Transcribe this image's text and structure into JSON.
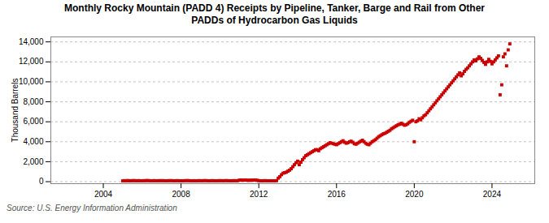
{
  "chart_data": {
    "type": "scatter",
    "title": "Monthly Rocky Mountain (PADD 4) Receipts by Pipeline, Tanker, Barge and Rail from Other\nPADDs of Hydrocarbon Gas Liquids",
    "ylabel": "Thousand Barrels",
    "annotations": [
      "Source: U.S. Energy Information Administration"
    ],
    "color": "#cc0000",
    "marker": "square",
    "grid": true,
    "xlim": [
      2001.3,
      2026.2
    ],
    "xticks": [
      2004,
      2008,
      2012,
      2016,
      2020,
      2024
    ],
    "ylim": [
      -200,
      14500
    ],
    "yticks": [
      0,
      {
        "value": 2000,
        "label": "2,000"
      },
      {
        "value": 4000,
        "label": "4,000"
      },
      {
        "value": 6000,
        "label": "6,000"
      },
      {
        "value": 8000,
        "label": "8,000"
      },
      {
        "value": 10000,
        "label": "10,000"
      },
      {
        "value": 12000,
        "label": "12,000"
      },
      {
        "value": 14000,
        "label": "14,000"
      }
    ],
    "x": [
      2005.0,
      2005.083,
      2005.167,
      2005.25,
      2005.333,
      2005.417,
      2005.5,
      2005.583,
      2005.667,
      2005.75,
      2005.833,
      2005.917,
      2006.0,
      2006.083,
      2006.167,
      2006.25,
      2006.333,
      2006.417,
      2006.5,
      2006.583,
      2006.667,
      2006.75,
      2006.833,
      2006.917,
      2007.0,
      2007.083,
      2007.167,
      2007.25,
      2007.333,
      2007.417,
      2007.5,
      2007.583,
      2007.667,
      2007.75,
      2007.833,
      2007.917,
      2008.0,
      2008.083,
      2008.167,
      2008.25,
      2008.333,
      2008.417,
      2008.5,
      2008.583,
      2008.667,
      2008.75,
      2008.833,
      2008.917,
      2009.0,
      2009.083,
      2009.167,
      2009.25,
      2009.333,
      2009.417,
      2009.5,
      2009.583,
      2009.667,
      2009.75,
      2009.833,
      2009.917,
      2010.0,
      2010.083,
      2010.167,
      2010.25,
      2010.333,
      2010.417,
      2010.5,
      2010.583,
      2010.667,
      2010.75,
      2010.833,
      2010.917,
      2011.0,
      2011.083,
      2011.167,
      2011.25,
      2011.333,
      2011.417,
      2011.5,
      2011.583,
      2011.667,
      2011.75,
      2011.833,
      2011.917,
      2012.0,
      2012.083,
      2012.167,
      2012.25,
      2012.333,
      2012.417,
      2012.5,
      2012.583,
      2012.667,
      2012.75,
      2012.833,
      2012.917,
      2013.0,
      2013.083,
      2013.167,
      2013.25,
      2013.333,
      2013.417,
      2013.5,
      2013.583,
      2013.667,
      2013.75,
      2013.833,
      2013.917,
      2014.0,
      2014.083,
      2014.167,
      2014.25,
      2014.333,
      2014.417,
      2014.5,
      2014.583,
      2014.667,
      2014.75,
      2014.833,
      2014.917,
      2015.0,
      2015.083,
      2015.167,
      2015.25,
      2015.333,
      2015.417,
      2015.5,
      2015.583,
      2015.667,
      2015.75,
      2015.833,
      2015.917,
      2016.0,
      2016.083,
      2016.167,
      2016.25,
      2016.333,
      2016.417,
      2016.5,
      2016.583,
      2016.667,
      2016.75,
      2016.833,
      2016.917,
      2017.0,
      2017.083,
      2017.167,
      2017.25,
      2017.333,
      2017.417,
      2017.5,
      2017.583,
      2017.667,
      2017.75,
      2017.833,
      2017.917,
      2018.0,
      2018.083,
      2018.167,
      2018.25,
      2018.333,
      2018.417,
      2018.5,
      2018.583,
      2018.667,
      2018.75,
      2018.833,
      2018.917,
      2019.0,
      2019.083,
      2019.167,
      2019.25,
      2019.333,
      2019.417,
      2019.5,
      2019.583,
      2019.667,
      2019.75,
      2019.833,
      2019.917,
      2020.0,
      2020.083,
      2020.167,
      2020.25,
      2020.333,
      2020.417,
      2020.5,
      2020.583,
      2020.667,
      2020.75,
      2020.833,
      2020.917,
      2021.0,
      2021.083,
      2021.167,
      2021.25,
      2021.333,
      2021.417,
      2021.5,
      2021.583,
      2021.667,
      2021.75,
      2021.833,
      2021.917,
      2022.0,
      2022.083,
      2022.167,
      2022.25,
      2022.333,
      2022.417,
      2022.5,
      2022.583,
      2022.667,
      2022.75,
      2022.833,
      2022.917,
      2023.0,
      2023.083,
      2023.167,
      2023.25,
      2023.333,
      2023.417,
      2023.5,
      2023.583,
      2023.667,
      2023.75,
      2023.833,
      2023.917,
      2024.0,
      2024.083,
      2024.167,
      2024.25,
      2024.333,
      2024.417,
      2024.5,
      2024.583,
      2024.667,
      2024.75,
      2024.833,
      2024.917
    ],
    "values": [
      80,
      100,
      90,
      110,
      95,
      85,
      100,
      110,
      90,
      95,
      100,
      85,
      90,
      95,
      100,
      110,
      105,
      90,
      85,
      100,
      95,
      90,
      95,
      100,
      95,
      100,
      90,
      85,
      95,
      100,
      105,
      90,
      80,
      95,
      100,
      90,
      90,
      85,
      95,
      100,
      110,
      95,
      90,
      85,
      95,
      80,
      90,
      100,
      95,
      90,
      100,
      105,
      95,
      85,
      90,
      100,
      95,
      90,
      85,
      95,
      100,
      95,
      90,
      100,
      105,
      95,
      90,
      85,
      95,
      100,
      90,
      100,
      150,
      160,
      140,
      150,
      160,
      140,
      130,
      150,
      140,
      160,
      150,
      140,
      100,
      90,
      80,
      95,
      100,
      85,
      90,
      80,
      85,
      90,
      80,
      100,
      350,
      500,
      700,
      850,
      900,
      950,
      1050,
      1150,
      1300,
      1500,
      1700,
      1900,
      2050,
      1700,
      1950,
      2200,
      2400,
      2600,
      2700,
      2800,
      2900,
      3000,
      3100,
      3200,
      3200,
      3100,
      3300,
      3400,
      3500,
      3600,
      3700,
      3800,
      3900,
      3850,
      3800,
      3750,
      3700,
      3800,
      3900,
      4000,
      4100,
      3950,
      3850,
      3900,
      4000,
      4050,
      3950,
      3800,
      3750,
      3850,
      3950,
      4050,
      4150,
      4000,
      3850,
      3750,
      3700,
      3850,
      4000,
      4100,
      4200,
      4350,
      4500,
      4600,
      4700,
      4800,
      4850,
      4950,
      5050,
      5150,
      5300,
      5400,
      5500,
      5600,
      5700,
      5750,
      5850,
      5750,
      5650,
      5700,
      5800,
      5950,
      6050,
      6150,
      4000,
      6000,
      6100,
      6300,
      6200,
      6400,
      6600,
      6700,
      6900,
      7100,
      7300,
      7500,
      7700,
      7900,
      8100,
      8300,
      8500,
      8700,
      8900,
      9100,
      9300,
      9500,
      9700,
      9900,
      10100,
      10300,
      10500,
      10700,
      10900,
      10600,
      10800,
      11050,
      11250,
      11400,
      11600,
      11800,
      12000,
      12200,
      12100,
      12300,
      12500,
      12350,
      12150,
      11950,
      11750,
      12000,
      12250,
      12050,
      11800,
      12000,
      12200,
      12400,
      12600,
      8700,
      9700,
      12500,
      12800,
      11600,
      13200,
      13800
    ]
  }
}
